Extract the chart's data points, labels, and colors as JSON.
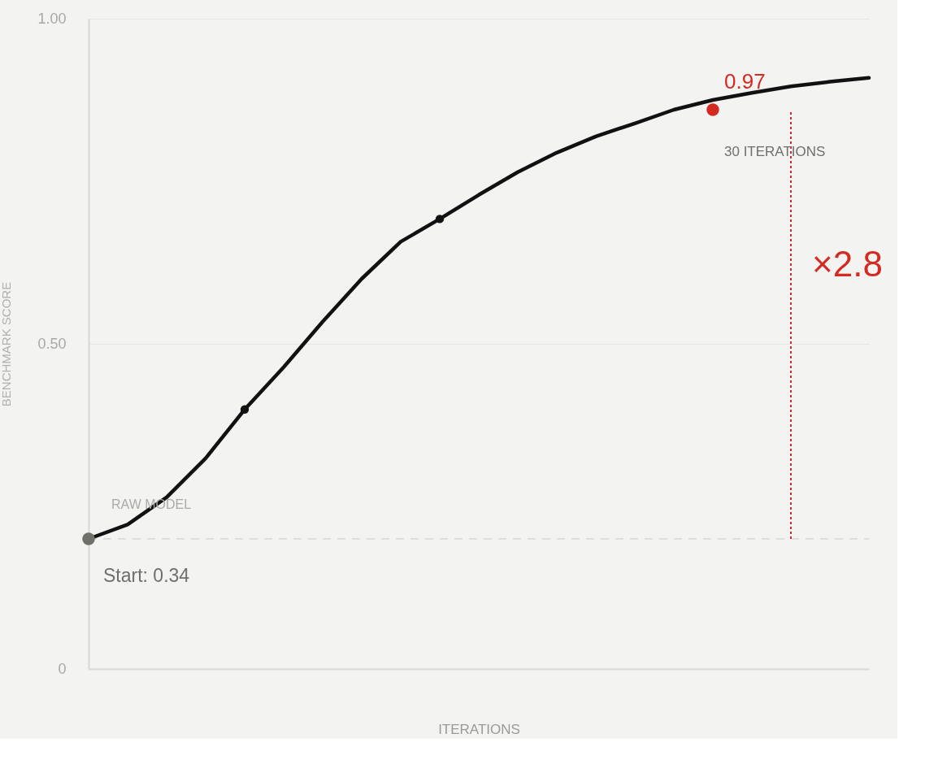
{
  "chart_data": {
    "type": "line",
    "xlabel": "ITERATIONS",
    "ylabel": "BENCHMARK SCORE",
    "categories": [
      null,
      null,
      null,
      null,
      null,
      null,
      null,
      null,
      null,
      null,
      null,
      null,
      null,
      null,
      null,
      null,
      null,
      null,
      null,
      null,
      null
    ],
    "ylim": [
      0,
      1.0
    ],
    "yticks": [
      0,
      {
        "value": 0.5,
        "label": "0.50"
      },
      {
        "value": 1.0,
        "label": "1.00"
      }
    ],
    "tick_labels": "y",
    "grid": "y",
    "series": [
      {
        "color": "#111111",
        "values": [
          0.2,
          0.222,
          0.264,
          0.324,
          0.399,
          0.464,
          0.534,
          0.6,
          0.657,
          0.692,
          0.729,
          0.764,
          0.794,
          0.819,
          0.839,
          0.86,
          0.875,
          0.886,
          0.896,
          0.903,
          0.909
        ]
      },
      {
        "type": "scatter",
        "marker": "circle",
        "values": [
          0.2,
          null,
          null,
          null,
          0.399,
          null,
          null,
          null,
          null,
          0.692,
          null,
          null,
          null,
          null,
          null,
          null,
          0.86,
          null,
          null,
          null,
          null
        ],
        "colors": [
          "#707068",
          null,
          null,
          null,
          "#111111",
          null,
          null,
          null,
          null,
          "#111111",
          null,
          null,
          null,
          null,
          null,
          null,
          "#d42a22",
          null,
          null,
          null,
          null
        ],
        "sizes": [
          1,
          null,
          null,
          null,
          0.45,
          null,
          null,
          null,
          null,
          0.45,
          null,
          null,
          null,
          null,
          null,
          null,
          1,
          null,
          null,
          null,
          null
        ]
      }
    ],
    "ref_lines": [
      {
        "axis": "y",
        "value": 0.2,
        "color": "#dddddd",
        "line_style": "dashed"
      }
    ],
    "annotations": [
      "0.97",
      "30 ITERATIONS",
      "×2.8",
      "RAW MODEL",
      "Start: 0.34"
    ]
  }
}
